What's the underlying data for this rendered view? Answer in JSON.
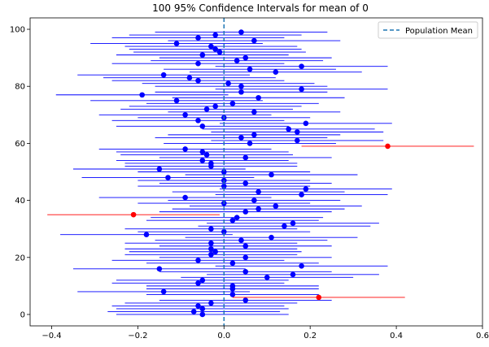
{
  "chart_data": {
    "type": "scatter",
    "title": "100 95% Confidence Intervals for mean of 0",
    "xlabel": "",
    "ylabel": "",
    "xlim": [
      -0.45,
      0.6
    ],
    "ylim": [
      -4,
      104
    ],
    "xticks": [
      -0.4,
      -0.2,
      0.0,
      0.2,
      0.4,
      0.6
    ],
    "xtick_labels": [
      "−0.4",
      "−0.2",
      "0.0",
      "0.2",
      "0.4",
      "0.6"
    ],
    "yticks": [
      0,
      20,
      40,
      60,
      80,
      100
    ],
    "ytick_labels": [
      "0",
      "20",
      "40",
      "60",
      "80",
      "100"
    ],
    "half_width": 0.2,
    "population_mean": 0.0,
    "legend": {
      "position": "upper right",
      "entries": [
        "Population Mean"
      ]
    },
    "colors": {
      "covers": "#0000ff",
      "misses": "#ff0000",
      "mean_line": "#1f77b4"
    },
    "series": [
      {
        "name": "intervals",
        "points": [
          {
            "y": 0,
            "mean": -0.05
          },
          {
            "y": 1,
            "mean": -0.07
          },
          {
            "y": 2,
            "mean": -0.05
          },
          {
            "y": 3,
            "mean": -0.06
          },
          {
            "y": 4,
            "mean": -0.03
          },
          {
            "y": 5,
            "mean": 0.05
          },
          {
            "y": 6,
            "mean": 0.22
          },
          {
            "y": 7,
            "mean": 0.02
          },
          {
            "y": 8,
            "mean": -0.14
          },
          {
            "y": 9,
            "mean": 0.02
          },
          {
            "y": 10,
            "mean": 0.02
          },
          {
            "y": 11,
            "mean": -0.06
          },
          {
            "y": 12,
            "mean": -0.05
          },
          {
            "y": 13,
            "mean": 0.1
          },
          {
            "y": 14,
            "mean": 0.16
          },
          {
            "y": 15,
            "mean": 0.05
          },
          {
            "y": 16,
            "mean": -0.15
          },
          {
            "y": 17,
            "mean": 0.18
          },
          {
            "y": 18,
            "mean": 0.02
          },
          {
            "y": 19,
            "mean": -0.06
          },
          {
            "y": 20,
            "mean": 0.05
          },
          {
            "y": 21,
            "mean": -0.03
          },
          {
            "y": 22,
            "mean": -0.02
          },
          {
            "y": 23,
            "mean": -0.03
          },
          {
            "y": 24,
            "mean": 0.05
          },
          {
            "y": 25,
            "mean": -0.03
          },
          {
            "y": 26,
            "mean": 0.04
          },
          {
            "y": 27,
            "mean": 0.11
          },
          {
            "y": 28,
            "mean": -0.18
          },
          {
            "y": 29,
            "mean": 0.0
          },
          {
            "y": 30,
            "mean": -0.03
          },
          {
            "y": 31,
            "mean": 0.14
          },
          {
            "y": 32,
            "mean": 0.16
          },
          {
            "y": 33,
            "mean": 0.02
          },
          {
            "y": 34,
            "mean": 0.03
          },
          {
            "y": 35,
            "mean": -0.21
          },
          {
            "y": 36,
            "mean": 0.05
          },
          {
            "y": 37,
            "mean": 0.08
          },
          {
            "y": 38,
            "mean": 0.12
          },
          {
            "y": 39,
            "mean": 0.0
          },
          {
            "y": 40,
            "mean": 0.07
          },
          {
            "y": 41,
            "mean": -0.09
          },
          {
            "y": 42,
            "mean": 0.18
          },
          {
            "y": 43,
            "mean": 0.08
          },
          {
            "y": 44,
            "mean": 0.19
          },
          {
            "y": 45,
            "mean": 0.0
          },
          {
            "y": 46,
            "mean": 0.05
          },
          {
            "y": 47,
            "mean": 0.0
          },
          {
            "y": 48,
            "mean": -0.13
          },
          {
            "y": 49,
            "mean": 0.11
          },
          {
            "y": 50,
            "mean": 0.0
          },
          {
            "y": 51,
            "mean": -0.15
          },
          {
            "y": 52,
            "mean": -0.03
          },
          {
            "y": 53,
            "mean": -0.03
          },
          {
            "y": 54,
            "mean": -0.05
          },
          {
            "y": 55,
            "mean": 0.05
          },
          {
            "y": 56,
            "mean": -0.04
          },
          {
            "y": 57,
            "mean": -0.05
          },
          {
            "y": 58,
            "mean": -0.09
          },
          {
            "y": 59,
            "mean": 0.38
          },
          {
            "y": 60,
            "mean": 0.06
          },
          {
            "y": 61,
            "mean": 0.17
          },
          {
            "y": 62,
            "mean": 0.04
          },
          {
            "y": 63,
            "mean": 0.07
          },
          {
            "y": 64,
            "mean": 0.17
          },
          {
            "y": 65,
            "mean": 0.15
          },
          {
            "y": 66,
            "mean": -0.05
          },
          {
            "y": 67,
            "mean": 0.19
          },
          {
            "y": 68,
            "mean": -0.06
          },
          {
            "y": 69,
            "mean": 0.0
          },
          {
            "y": 70,
            "mean": -0.09
          },
          {
            "y": 71,
            "mean": 0.07
          },
          {
            "y": 72,
            "mean": -0.04
          },
          {
            "y": 73,
            "mean": -0.02
          },
          {
            "y": 74,
            "mean": 0.02
          },
          {
            "y": 75,
            "mean": -0.11
          },
          {
            "y": 76,
            "mean": 0.08
          },
          {
            "y": 77,
            "mean": -0.19
          },
          {
            "y": 78,
            "mean": 0.04
          },
          {
            "y": 79,
            "mean": 0.18
          },
          {
            "y": 80,
            "mean": 0.04
          },
          {
            "y": 81,
            "mean": 0.01
          },
          {
            "y": 82,
            "mean": -0.06
          },
          {
            "y": 83,
            "mean": -0.08
          },
          {
            "y": 84,
            "mean": -0.14
          },
          {
            "y": 85,
            "mean": 0.12
          },
          {
            "y": 86,
            "mean": 0.06
          },
          {
            "y": 87,
            "mean": 0.18
          },
          {
            "y": 88,
            "mean": -0.06
          },
          {
            "y": 89,
            "mean": 0.03
          },
          {
            "y": 90,
            "mean": 0.05
          },
          {
            "y": 91,
            "mean": -0.05
          },
          {
            "y": 92,
            "mean": -0.01
          },
          {
            "y": 93,
            "mean": -0.02
          },
          {
            "y": 94,
            "mean": -0.03
          },
          {
            "y": 95,
            "mean": -0.11
          },
          {
            "y": 96,
            "mean": 0.07
          },
          {
            "y": 97,
            "mean": -0.06
          },
          {
            "y": 98,
            "mean": -0.02
          },
          {
            "y": 99,
            "mean": 0.04
          }
        ]
      }
    ]
  }
}
